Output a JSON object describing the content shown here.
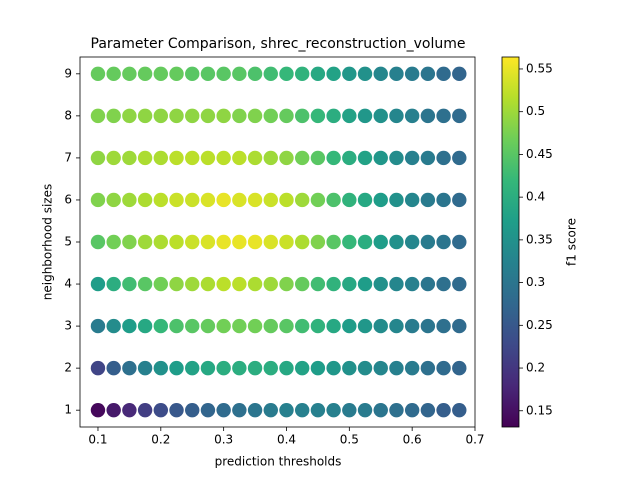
{
  "chart_data": {
    "type": "scatter",
    "title": "Parameter Comparison, shrec_reconstruction_volume",
    "x_label": "prediction thresholds",
    "y_label": "neighborhood sizes",
    "colorbar_label": "f1 score",
    "colormap": "viridis",
    "x": [
      0.1,
      0.125,
      0.15,
      0.175,
      0.2,
      0.225,
      0.25,
      0.275,
      0.3,
      0.325,
      0.35,
      0.375,
      0.4,
      0.425,
      0.45,
      0.475,
      0.5,
      0.525,
      0.55,
      0.575,
      0.6,
      0.625,
      0.65,
      0.675
    ],
    "y": [
      1,
      2,
      3,
      4,
      5,
      6,
      7,
      8,
      9
    ],
    "values": [
      [
        0.14,
        0.16,
        0.18,
        0.21,
        0.23,
        0.25,
        0.26,
        0.27,
        0.28,
        0.29,
        0.3,
        0.31,
        0.32,
        0.32,
        0.32,
        0.32,
        0.31,
        0.31,
        0.3,
        0.29,
        0.28,
        0.27,
        0.26,
        0.26
      ],
      [
        0.22,
        0.26,
        0.29,
        0.32,
        0.35,
        0.37,
        0.38,
        0.39,
        0.4,
        0.4,
        0.4,
        0.4,
        0.39,
        0.38,
        0.37,
        0.36,
        0.35,
        0.34,
        0.33,
        0.32,
        0.31,
        0.29,
        0.28,
        0.27
      ],
      [
        0.31,
        0.34,
        0.37,
        0.39,
        0.42,
        0.44,
        0.45,
        0.46,
        0.47,
        0.47,
        0.47,
        0.46,
        0.45,
        0.43,
        0.41,
        0.39,
        0.37,
        0.36,
        0.34,
        0.33,
        0.31,
        0.3,
        0.29,
        0.28
      ],
      [
        0.37,
        0.4,
        0.43,
        0.45,
        0.47,
        0.49,
        0.5,
        0.51,
        0.52,
        0.52,
        0.51,
        0.5,
        0.48,
        0.46,
        0.43,
        0.41,
        0.39,
        0.37,
        0.35,
        0.33,
        0.32,
        0.3,
        0.29,
        0.28
      ],
      [
        0.45,
        0.47,
        0.48,
        0.5,
        0.51,
        0.52,
        0.53,
        0.54,
        0.55,
        0.55,
        0.55,
        0.54,
        0.53,
        0.51,
        0.48,
        0.45,
        0.42,
        0.4,
        0.37,
        0.35,
        0.33,
        0.31,
        0.3,
        0.28
      ],
      [
        0.48,
        0.49,
        0.5,
        0.51,
        0.52,
        0.53,
        0.53,
        0.54,
        0.55,
        0.54,
        0.54,
        0.53,
        0.52,
        0.5,
        0.47,
        0.44,
        0.41,
        0.39,
        0.37,
        0.35,
        0.33,
        0.31,
        0.3,
        0.28
      ],
      [
        0.49,
        0.5,
        0.5,
        0.51,
        0.51,
        0.52,
        0.52,
        0.52,
        0.52,
        0.52,
        0.51,
        0.5,
        0.49,
        0.47,
        0.45,
        0.42,
        0.4,
        0.38,
        0.36,
        0.34,
        0.32,
        0.31,
        0.29,
        0.28
      ],
      [
        0.48,
        0.48,
        0.49,
        0.49,
        0.49,
        0.49,
        0.49,
        0.49,
        0.49,
        0.48,
        0.48,
        0.47,
        0.46,
        0.44,
        0.42,
        0.4,
        0.38,
        0.36,
        0.35,
        0.33,
        0.32,
        0.3,
        0.29,
        0.28
      ],
      [
        0.46,
        0.46,
        0.46,
        0.46,
        0.46,
        0.46,
        0.45,
        0.45,
        0.45,
        0.45,
        0.44,
        0.43,
        0.42,
        0.41,
        0.39,
        0.38,
        0.36,
        0.35,
        0.33,
        0.32,
        0.31,
        0.3,
        0.28,
        0.27
      ]
    ],
    "xlim": [
      0.0714,
      0.7
    ],
    "xticks": [
      0.1,
      0.2,
      0.3,
      0.4,
      0.5,
      0.6,
      0.7
    ],
    "ylim": [
      0.6,
      9.4
    ],
    "yticks": [
      1,
      2,
      3,
      4,
      5,
      6,
      7,
      8,
      9
    ],
    "clim": [
      0.131,
      0.564
    ],
    "cticks": [
      0.15,
      0.2,
      0.25,
      0.3,
      0.35,
      0.4,
      0.45,
      0.5,
      0.55
    ]
  }
}
